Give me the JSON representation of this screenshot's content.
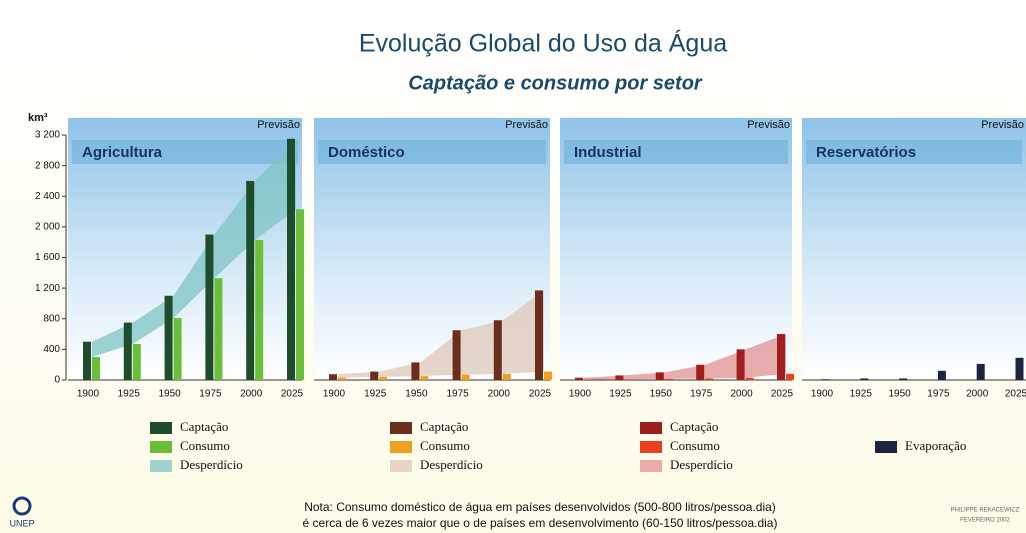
{
  "chart_data": {
    "type": "bar",
    "title": "Evolução Global do Uso da Água",
    "subtitle": "Captação e consumo por setor",
    "y_label": "km³",
    "ylim": [
      0,
      3200
    ],
    "yticks": [
      0,
      400,
      800,
      {
        "value": 1200,
        "label": "1 200"
      },
      {
        "value": 1600,
        "label": "1 600"
      },
      {
        "value": 2000,
        "label": "2 000"
      },
      {
        "value": 2400,
        "label": "2 400"
      },
      {
        "value": 2800,
        "label": "2 800"
      },
      {
        "value": 3200,
        "label": "3 200"
      }
    ],
    "panels": [
      {
        "title": "Agricultura",
        "annotation": "Previsão",
        "categories": [
          "1900",
          "1925",
          "1950",
          "1975",
          "2000",
          "2025"
        ],
        "series": [
          {
            "name": "Captação",
            "type": "bar",
            "color": "#1e4d2b",
            "values": [
              500,
              750,
              1100,
              1900,
              2600,
              3150
            ]
          },
          {
            "name": "Consumo",
            "type": "bar",
            "color": "#6abf3a",
            "values": [
              300,
              470,
              810,
              1330,
              1830,
              2230
            ]
          },
          {
            "name": "Desperdício",
            "type": "area",
            "color": "#7fc4c4",
            "values": [
              200,
              280,
              290,
              570,
              770,
              920
            ]
          }
        ]
      },
      {
        "title": "Doméstico",
        "annotation": "Previsão",
        "categories": [
          "1900",
          "1925",
          "1950",
          "1975",
          "2000",
          "2025"
        ],
        "series": [
          {
            "name": "Captação",
            "type": "bar",
            "color": "#6b2e1e",
            "values": [
              75,
              110,
              230,
              650,
              780,
              1170
            ]
          },
          {
            "name": "Consumo",
            "type": "bar",
            "color": "#f0a020",
            "values": [
              30,
              40,
              50,
              70,
              80,
              110
            ]
          },
          {
            "name": "Desperdício",
            "type": "area",
            "color": "#ddc8b8",
            "values": [
              45,
              70,
              180,
              580,
              700,
              1060
            ]
          }
        ]
      },
      {
        "title": "Industrial",
        "annotation": "Previsão",
        "categories": [
          "1900",
          "1925",
          "1950",
          "1975",
          "2000",
          "2025"
        ],
        "series": [
          {
            "name": "Captação",
            "type": "bar",
            "color": "#a01e1e",
            "values": [
              30,
              60,
              100,
              200,
              400,
              600
            ]
          },
          {
            "name": "Consumo",
            "type": "bar",
            "color": "#e84020",
            "values": [
              5,
              10,
              15,
              20,
              30,
              80
            ]
          },
          {
            "name": "Desperdício",
            "type": "area",
            "color": "#e09090",
            "values": [
              25,
              50,
              85,
              180,
              370,
              520
            ]
          }
        ]
      },
      {
        "title": "Reservatórios",
        "annotation": "Previsão",
        "categories": [
          "1900",
          "1925",
          "1950",
          "1975",
          "2000",
          "2025"
        ],
        "series": [
          {
            "name": "Evaporação",
            "type": "bar",
            "color": "#1c2440",
            "values": [
              10,
              20,
              20,
              120,
              210,
              290
            ]
          }
        ]
      }
    ],
    "note": [
      "Nota: Consumo doméstico de água em países desenvolvidos (500-800 litros/pessoa.dia)",
      "é cerca de 6 vezes maior que o de países em desenvolvimento (60-150 litros/pessoa.dia)"
    ],
    "logo": "UNEP",
    "credit": [
      "PHILIPPE REKACEWICZ",
      "FEVEREIRO 2002"
    ]
  }
}
